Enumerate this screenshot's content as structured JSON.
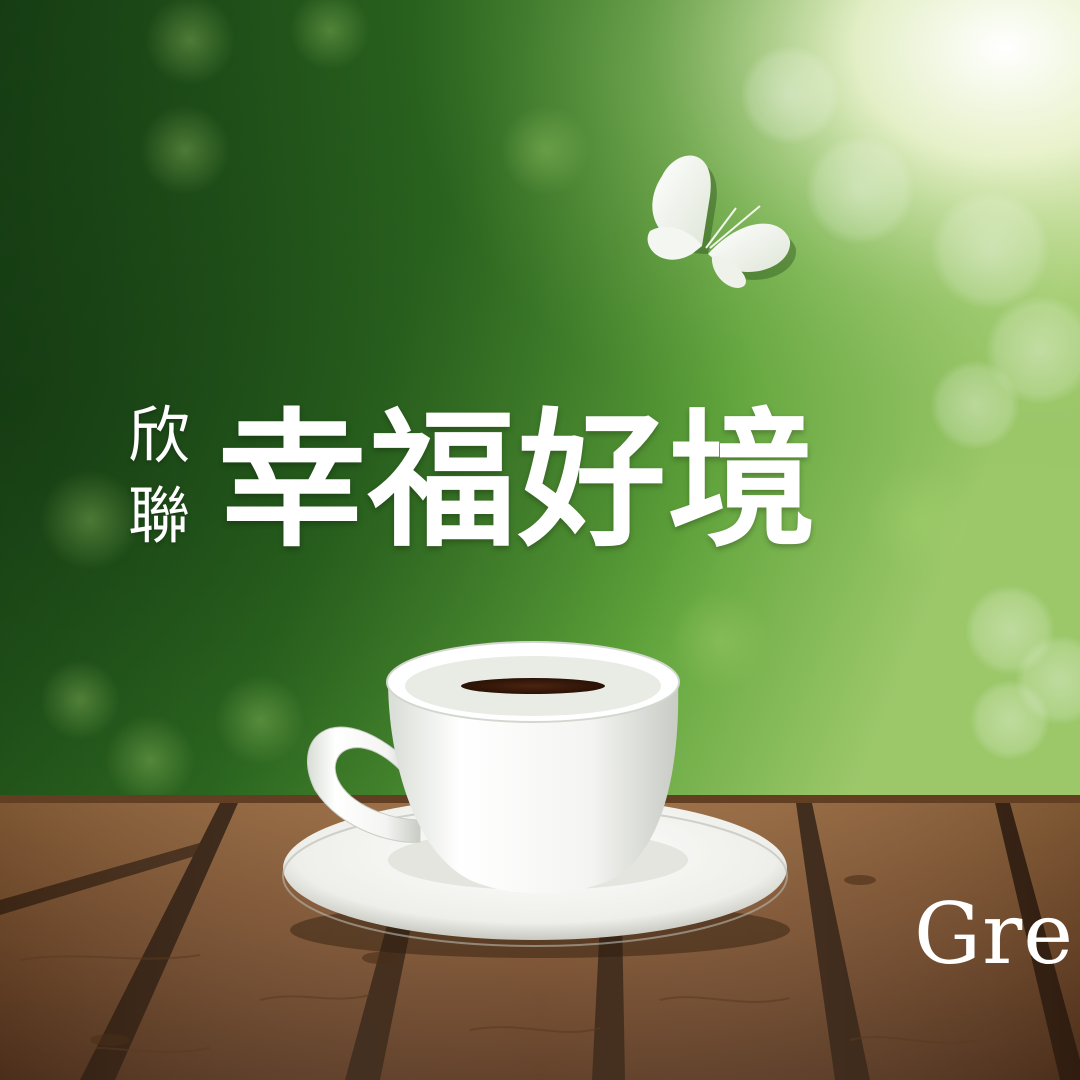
{
  "headline": {
    "brand_line1": "欣",
    "brand_line2": "聯",
    "main": "幸福好境"
  },
  "footer": {
    "brand_partial": "Gre"
  },
  "colors": {
    "green_dark": "#1f4d18",
    "green_mid": "#3f8a2c",
    "sunlight": "#f4f7dc",
    "wood": "#8a5a32",
    "text": "#ffffff"
  },
  "icons": {
    "butterfly": "butterfly-icon"
  }
}
